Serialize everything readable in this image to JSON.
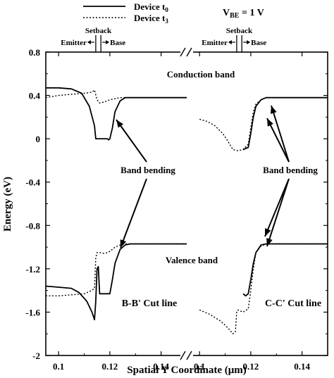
{
  "chart_data": {
    "type": "line",
    "xlabel": "Spatial Y Coordinate (μm)",
    "ylabel": "Energy (eV)",
    "ylim": [
      -2,
      0.8
    ],
    "y_ticks": [
      "0.8",
      "0.4",
      "0",
      "-0.4",
      "-0.8",
      "-1.2",
      "-1.6",
      "-2"
    ],
    "legend": [
      {
        "label_main": "Device t",
        "label_sub": "0",
        "style": "solid"
      },
      {
        "label_main": "Device t",
        "label_sub": "3",
        "style": "dotted"
      }
    ],
    "vbe": {
      "main": "V",
      "sub": "BE",
      "rest": " = 1 V"
    },
    "panels": [
      {
        "xlim": [
          0.095,
          0.15
        ],
        "x_ticks": [
          "0.1",
          "0.12",
          "0.14"
        ],
        "region_labels": {
          "left": "Emitter",
          "middle": "Setback",
          "right": "Base"
        },
        "setback_x": [
          0.1145,
          0.1165
        ],
        "annotations": {
          "top": "Conduction band",
          "mid": "Band bending",
          "low": "Valence band",
          "cut": "B-B' Cut line"
        },
        "series": [
          {
            "name": "Device t0",
            "band": "conduction",
            "x": [
              0.095,
              0.1,
              0.105,
              0.109,
              0.112,
              0.114,
              0.1145,
              0.117,
              0.118,
              0.119,
              0.1195,
              0.12,
              0.121,
              0.122,
              0.124,
              0.126,
              0.128,
              0.15
            ],
            "y": [
              0.47,
              0.47,
              0.46,
              0.42,
              0.3,
              0.12,
              0.0,
              0.0,
              0.0,
              0.0,
              -0.01,
              0.0,
              0.1,
              0.25,
              0.35,
              0.38,
              0.38,
              0.38
            ]
          },
          {
            "name": "Device t3",
            "band": "conduction",
            "x": [
              0.095,
              0.1,
              0.105,
              0.11,
              0.113,
              0.114,
              0.115,
              0.116,
              0.118,
              0.12,
              0.122,
              0.124,
              0.126,
              0.15
            ],
            "y": [
              0.38,
              0.4,
              0.41,
              0.42,
              0.43,
              0.45,
              0.36,
              0.33,
              0.34,
              0.36,
              0.37,
              0.38,
              0.38,
              0.38
            ]
          },
          {
            "name": "Device t0",
            "band": "valence",
            "x": [
              0.095,
              0.1,
              0.105,
              0.108,
              0.111,
              0.113,
              0.114,
              0.1145,
              0.115,
              0.1155,
              0.116,
              0.119,
              0.12,
              0.121,
              0.122,
              0.124,
              0.126,
              0.128,
              0.15
            ],
            "y": [
              -1.36,
              -1.37,
              -1.38,
              -1.42,
              -1.5,
              -1.6,
              -1.67,
              -1.5,
              -1.2,
              -1.18,
              -1.43,
              -1.43,
              -1.43,
              -1.3,
              -1.15,
              -1.02,
              -0.98,
              -0.97,
              -0.97
            ]
          },
          {
            "name": "Device t3",
            "band": "valence",
            "x": [
              0.095,
              0.1,
              0.105,
              0.11,
              0.113,
              0.114,
              0.1145,
              0.115,
              0.116,
              0.118,
              0.12,
              0.122,
              0.124,
              0.126,
              0.15
            ],
            "y": [
              -1.45,
              -1.45,
              -1.44,
              -1.43,
              -1.4,
              -1.38,
              -1.1,
              -1.05,
              -1.05,
              -1.06,
              -1.04,
              -1.0,
              -0.98,
              -0.97,
              -0.97
            ]
          }
        ]
      },
      {
        "xlim": [
          0.095,
          0.15
        ],
        "x_ticks": [
          "0.1",
          "0.12",
          "0.14"
        ],
        "region_labels": {
          "left": "Emitter",
          "middle": "Setback",
          "right": "Base"
        },
        "setback_x": [
          0.1145,
          0.1165
        ],
        "annotations": {
          "top": "",
          "mid": "Band bending",
          "low": "",
          "cut": "C-C' Cut line"
        },
        "series": [
          {
            "name": "Device t0",
            "band": "conduction",
            "x": [
              0.117,
              0.119,
              0.12,
              0.121,
              0.122,
              0.124,
              0.126,
              0.128,
              0.15
            ],
            "y": [
              -0.1,
              -0.08,
              0.05,
              0.2,
              0.3,
              0.36,
              0.38,
              0.38,
              0.38
            ]
          },
          {
            "name": "Device t3",
            "band": "conduction",
            "x": [
              0.1,
              0.103,
              0.106,
              0.109,
              0.111,
              0.113,
              0.115,
              0.117,
              0.119,
              0.12,
              0.121,
              0.122,
              0.124,
              0.126,
              0.15
            ],
            "y": [
              0.18,
              0.16,
              0.12,
              0.05,
              -0.02,
              -0.1,
              -0.11,
              -0.1,
              -0.05,
              0.1,
              0.25,
              0.32,
              0.36,
              0.38,
              0.38
            ]
          },
          {
            "name": "Device t0",
            "band": "valence",
            "x": [
              0.117,
              0.118,
              0.119,
              0.12,
              0.121,
              0.122,
              0.124,
              0.126,
              0.128,
              0.15
            ],
            "y": [
              -1.43,
              -1.45,
              -1.43,
              -1.3,
              -1.15,
              -1.05,
              -0.98,
              -0.97,
              -0.97,
              -0.97
            ]
          },
          {
            "name": "Device t3",
            "band": "valence",
            "x": [
              0.1,
              0.104,
              0.108,
              0.11,
              0.112,
              0.113,
              0.114,
              0.1145,
              0.115,
              0.117,
              0.119,
              0.12,
              0.121,
              0.122,
              0.124,
              0.126,
              0.15
            ],
            "y": [
              -1.58,
              -1.62,
              -1.68,
              -1.72,
              -1.77,
              -1.8,
              -1.78,
              -1.6,
              -1.58,
              -1.6,
              -1.57,
              -1.4,
              -1.2,
              -1.05,
              -0.99,
              -0.97,
              -0.97
            ]
          }
        ]
      }
    ]
  }
}
